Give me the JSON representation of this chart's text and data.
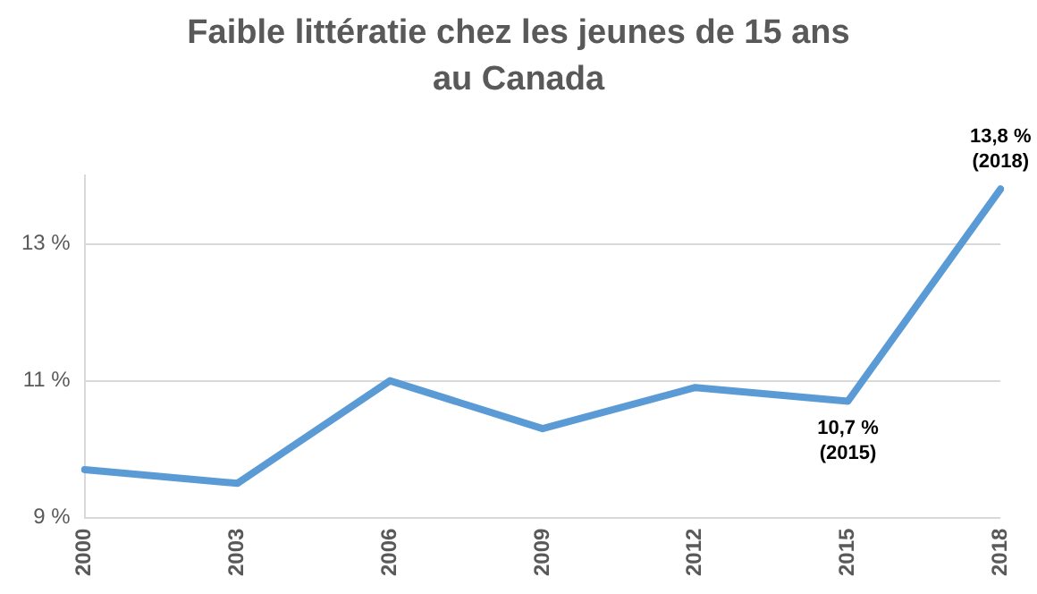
{
  "chart_data": {
    "type": "line",
    "title": "Faible littératie chez les jeunes de 15 ans au Canada",
    "categories": [
      "2000",
      "2003",
      "2006",
      "2009",
      "2012",
      "2015",
      "2018"
    ],
    "series": [
      {
        "color": "#5b9bd5",
        "values": [
          9.7,
          9.5,
          11.0,
          10.3,
          10.9,
          10.7,
          13.8
        ]
      }
    ],
    "ylim": [
      9,
      14
    ],
    "yticks": [
      {
        "value": 9,
        "label": "9 %"
      },
      {
        "value": 11,
        "label": "11 %"
      },
      {
        "value": 13,
        "label": "13 %"
      }
    ],
    "grid": "y",
    "legend": false,
    "marker": "none",
    "line_style": "solid",
    "annotations": [
      {
        "text": "10,7 %\n(2015)",
        "x": "2015",
        "y": 10.7
      },
      {
        "text": "13,8 %\n(2018)",
        "x": "2018",
        "y": 13.8
      }
    ]
  }
}
